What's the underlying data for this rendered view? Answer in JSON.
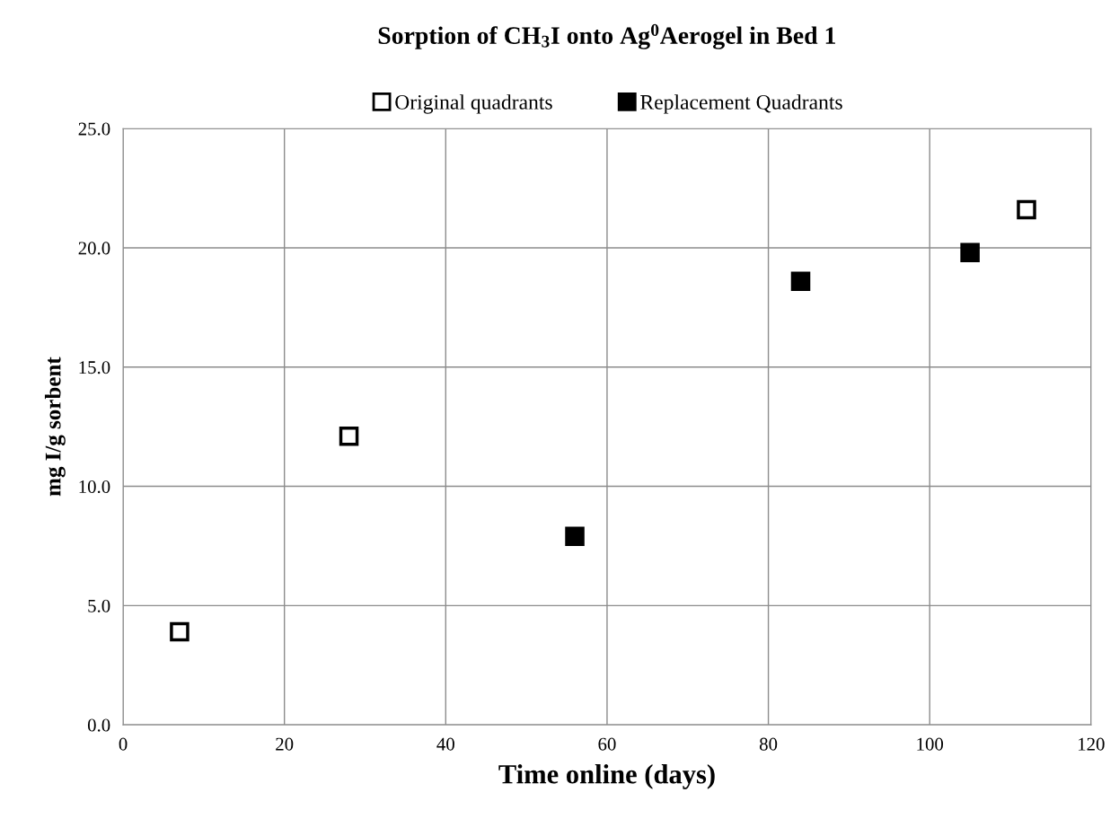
{
  "chart_data": {
    "type": "scatter",
    "title": "Sorption of CH$_{3}$I onto Ag$^{0}$Aerogel in Bed 1",
    "xlabel": "Time online (days)",
    "ylabel": "mg I/g sorbent",
    "series": [
      {
        "name": "Original quadrants",
        "color": "#ffffff",
        "x": [
          7,
          28,
          112
        ],
        "values": [
          3.9,
          12.1,
          21.6
        ]
      },
      {
        "name": "Replacement Quadrants",
        "color": "#000000",
        "x": [
          56,
          84,
          105
        ],
        "values": [
          7.9,
          18.6,
          19.8
        ]
      }
    ],
    "xlim": [
      0,
      120
    ],
    "xticks": [
      0,
      20,
      40,
      60,
      80,
      100,
      120
    ],
    "ylim": [
      0,
      25
    ],
    "yticks": [
      {
        "value": 0,
        "label": "0.0"
      },
      {
        "value": 5,
        "label": "5.0"
      },
      {
        "value": 10,
        "label": "10.0"
      },
      {
        "value": 15,
        "label": "15.0"
      },
      {
        "value": 20,
        "label": "20.0"
      },
      {
        "value": 25,
        "label": "25.0"
      }
    ],
    "grid": true,
    "legend": "top",
    "marker": "square"
  }
}
